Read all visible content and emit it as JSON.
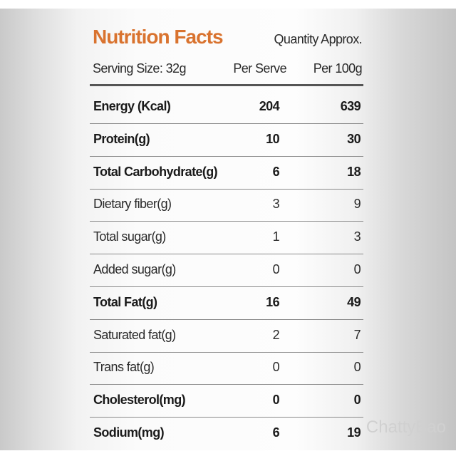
{
  "header": {
    "title": "Nutrition Facts",
    "subtitle": "Quantity Approx.",
    "serving_size": "Serving Size: 32g",
    "col1": "Per Serve",
    "col2": "Per 100g"
  },
  "table": {
    "rows": [
      {
        "name": "Energy (Kcal)",
        "per_serve": 204,
        "per_100g": 639,
        "bold": true
      },
      {
        "name": "Protein(g)",
        "per_serve": 10,
        "per_100g": 30,
        "bold": true
      },
      {
        "name": "Total Carbohydrate(g)",
        "per_serve": 6,
        "per_100g": 18,
        "bold": true
      },
      {
        "name": "Dietary fiber(g)",
        "per_serve": 3,
        "per_100g": 9,
        "bold": false
      },
      {
        "name": "Total sugar(g)",
        "per_serve": 1,
        "per_100g": 3,
        "bold": false
      },
      {
        "name": "Added sugar(g)",
        "per_serve": 0,
        "per_100g": 0,
        "bold": false
      },
      {
        "name": "Total Fat(g)",
        "per_serve": 16,
        "per_100g": 49,
        "bold": true
      },
      {
        "name": "Saturated fat(g)",
        "per_serve": 2,
        "per_100g": 7,
        "bold": false
      },
      {
        "name": "Trans fat(g)",
        "per_serve": 0,
        "per_100g": 0,
        "bold": false
      },
      {
        "name": "Cholesterol(mg)",
        "per_serve": 0,
        "per_100g": 0,
        "bold": true
      },
      {
        "name": "Sodium(mg)",
        "per_serve": 6,
        "per_100g": 19,
        "bold": true
      }
    ]
  },
  "watermark": "ChattyBao"
}
